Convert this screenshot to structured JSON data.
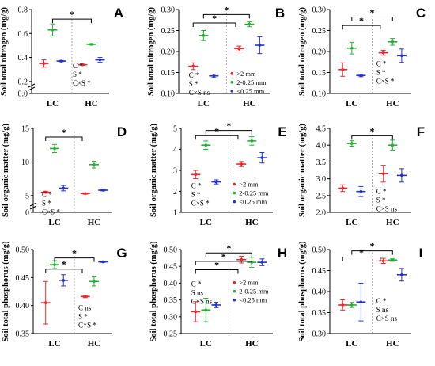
{
  "figure": {
    "legend_entries": [
      ">2 mm",
      "2-0.25 mm",
      "<0.25 mm"
    ],
    "colors": {
      "gt2": "#e8262b",
      "mid": "#23b033",
      "lt025": "#2431c8",
      "axis": "#000000",
      "divider": "#9a9a9a"
    }
  },
  "chart_data": [
    {
      "panel": "A",
      "type": "scatter",
      "ylabel": "Soil total nitrogen (mg/g)",
      "ylim": [
        0.1,
        0.8
      ],
      "yticks": [
        "0.0",
        "0.2",
        "0.4",
        "0.6",
        "0.8"
      ],
      "yticks_values": [
        0.0,
        0.2,
        0.4,
        0.6,
        0.8
      ],
      "broken_axis": true,
      "groups": [
        "LC",
        "HC"
      ],
      "series": [
        {
          "color": "gt2",
          "points": [
            {
              "group": "LC",
              "mean": 0.35,
              "sd": 0.03
            },
            {
              "group": "HC",
              "mean": 0.34,
              "sd": 0.005
            }
          ]
        },
        {
          "color": "mid",
          "points": [
            {
              "group": "LC",
              "mean": 0.63,
              "sd": 0.05
            },
            {
              "group": "HC",
              "mean": 0.51,
              "sd": 0.005
            }
          ]
        },
        {
          "color": "lt025",
          "points": [
            {
              "group": "LC",
              "mean": 0.37,
              "sd": 0.005
            },
            {
              "group": "HC",
              "mean": 0.38,
              "sd": 0.02
            }
          ]
        }
      ],
      "brackets": [
        {
          "x1": 0.0,
          "x2": 1.0,
          "y": 0.72,
          "label": "*"
        }
      ],
      "annotation_lines": [
        "C *",
        "S *",
        "C×S *"
      ],
      "annotation_pos": [
        0.52,
        0.31
      ],
      "legend": false
    },
    {
      "panel": "B",
      "type": "scatter",
      "ylabel": "Soil total nitrogen (mg/g)",
      "ylim": [
        0.1,
        0.3
      ],
      "yticks": [
        "0.10",
        "0.15",
        "0.20",
        "0.25",
        "0.30"
      ],
      "yticks_values": [
        0.1,
        0.15,
        0.2,
        0.25,
        0.3
      ],
      "broken_axis": false,
      "groups": [
        "LC",
        "HC"
      ],
      "series": [
        {
          "color": "gt2",
          "points": [
            {
              "group": "LC",
              "mean": 0.165,
              "sd": 0.008
            },
            {
              "group": "HC",
              "mean": 0.207,
              "sd": 0.006
            }
          ]
        },
        {
          "color": "mid",
          "points": [
            {
              "group": "LC",
              "mean": 0.238,
              "sd": 0.012
            },
            {
              "group": "HC",
              "mean": 0.265,
              "sd": 0.006
            }
          ]
        },
        {
          "color": "lt025",
          "points": [
            {
              "group": "LC",
              "mean": 0.142,
              "sd": 0.004
            },
            {
              "group": "HC",
              "mean": 0.215,
              "sd": 0.02
            }
          ]
        }
      ],
      "brackets": [
        {
          "x1": -0.3,
          "x2": 0.7,
          "y": 0.268,
          "label": "*"
        },
        {
          "x1": 0.0,
          "x2": 1.0,
          "y": 0.288,
          "label": "*"
        }
      ],
      "annotation_lines": [
        "C *",
        "S *",
        "C×S ns"
      ],
      "annotation_pos": [
        -0.32,
        0.138
      ],
      "legend": true
    },
    {
      "panel": "C",
      "type": "scatter",
      "ylabel": "Soil total nitrogen (mg/g)",
      "ylim": [
        0.1,
        0.3
      ],
      "yticks": [
        "0.10",
        "0.15",
        "0.20",
        "0.25",
        "0.30"
      ],
      "yticks_values": [
        0.1,
        0.15,
        0.2,
        0.25,
        0.3
      ],
      "broken_axis": false,
      "groups": [
        "LC",
        "HC"
      ],
      "series": [
        {
          "color": "gt2",
          "points": [
            {
              "group": "LC",
              "mean": 0.157,
              "sd": 0.016
            },
            {
              "group": "HC",
              "mean": 0.197,
              "sd": 0.006
            }
          ]
        },
        {
          "color": "mid",
          "points": [
            {
              "group": "LC",
              "mean": 0.208,
              "sd": 0.014
            },
            {
              "group": "HC",
              "mean": 0.223,
              "sd": 0.008
            }
          ]
        },
        {
          "color": "lt025",
          "points": [
            {
              "group": "LC",
              "mean": 0.143,
              "sd": 0.003
            },
            {
              "group": "HC",
              "mean": 0.19,
              "sd": 0.016
            }
          ]
        }
      ],
      "brackets": [
        {
          "x1": -0.3,
          "x2": 0.7,
          "y": 0.262,
          "label": "*"
        },
        {
          "x1": 0.0,
          "x2": 1.0,
          "y": 0.282,
          "label": "*"
        }
      ],
      "annotation_lines": [
        "C *",
        "S *",
        "C×S *"
      ],
      "annotation_pos": [
        0.6,
        0.165
      ],
      "legend": false
    },
    {
      "panel": "D",
      "type": "scatter",
      "ylabel": "Soil organic matter (mg/g)",
      "ylim": [
        2.5,
        15
      ],
      "yticks": [
        "0",
        "5",
        "10",
        "15"
      ],
      "yticks_values": [
        0,
        5,
        10,
        15
      ],
      "broken_axis": true,
      "groups": [
        "LC",
        "HC"
      ],
      "series": [
        {
          "color": "gt2",
          "points": [
            {
              "group": "LC",
              "mean": 5.5,
              "sd": 0.15
            },
            {
              "group": "HC",
              "mean": 5.3,
              "sd": 0.1
            }
          ]
        },
        {
          "color": "mid",
          "points": [
            {
              "group": "LC",
              "mean": 12.0,
              "sd": 0.6
            },
            {
              "group": "HC",
              "mean": 9.6,
              "sd": 0.5
            }
          ]
        },
        {
          "color": "lt025",
          "points": [
            {
              "group": "LC",
              "mean": 6.1,
              "sd": 0.4
            },
            {
              "group": "HC",
              "mean": 5.8,
              "sd": 0.1
            }
          ]
        }
      ],
      "brackets": [
        {
          "x1": -0.3,
          "x2": 0.7,
          "y": 13.7,
          "label": "*"
        }
      ],
      "annotation_lines": [
        "C *",
        "S *",
        "C×S *"
      ],
      "annotation_pos": [
        -0.32,
        4.8
      ],
      "legend": false
    },
    {
      "panel": "E",
      "type": "scatter",
      "ylabel": "Soil organic matter (mg/g)",
      "ylim": [
        1,
        5
      ],
      "yticks": [
        "1",
        "2",
        "3",
        "4",
        "5"
      ],
      "yticks_values": [
        1,
        2,
        3,
        4,
        5
      ],
      "broken_axis": false,
      "groups": [
        "LC",
        "HC"
      ],
      "series": [
        {
          "color": "gt2",
          "points": [
            {
              "group": "LC",
              "mean": 2.8,
              "sd": 0.2
            },
            {
              "group": "HC",
              "mean": 3.3,
              "sd": 0.12
            }
          ]
        },
        {
          "color": "mid",
          "points": [
            {
              "group": "LC",
              "mean": 4.2,
              "sd": 0.2
            },
            {
              "group": "HC",
              "mean": 4.4,
              "sd": 0.2
            }
          ]
        },
        {
          "color": "lt025",
          "points": [
            {
              "group": "LC",
              "mean": 2.45,
              "sd": 0.1
            },
            {
              "group": "HC",
              "mean": 3.6,
              "sd": 0.25
            }
          ]
        }
      ],
      "brackets": [
        {
          "x1": -0.3,
          "x2": 0.7,
          "y": 4.65,
          "label": "*"
        },
        {
          "x1": 0.0,
          "x2": 1.0,
          "y": 4.9,
          "label": "*"
        }
      ],
      "annotation_lines": [
        "C *",
        "S *",
        "C×S *"
      ],
      "annotation_pos": [
        -0.32,
        2.15
      ],
      "legend": true
    },
    {
      "panel": "F",
      "type": "scatter",
      "ylabel": "Soil organic matter (mg/g)",
      "ylim": [
        2,
        4.5
      ],
      "yticks": [
        "2.0",
        "2.5",
        "3.0",
        "3.5",
        "4.0",
        "4.5"
      ],
      "yticks_values": [
        2.0,
        2.5,
        3.0,
        3.5,
        4.0,
        4.5
      ],
      "broken_axis": false,
      "groups": [
        "LC",
        "HC"
      ],
      "series": [
        {
          "color": "gt2",
          "points": [
            {
              "group": "LC",
              "mean": 2.72,
              "sd": 0.1
            },
            {
              "group": "HC",
              "mean": 3.15,
              "sd": 0.25
            }
          ]
        },
        {
          "color": "mid",
          "points": [
            {
              "group": "LC",
              "mean": 4.05,
              "sd": 0.08
            },
            {
              "group": "HC",
              "mean": 4.0,
              "sd": 0.15
            }
          ]
        },
        {
          "color": "lt025",
          "points": [
            {
              "group": "LC",
              "mean": 2.62,
              "sd": 0.15
            },
            {
              "group": "HC",
              "mean": 3.1,
              "sd": 0.2
            }
          ]
        }
      ],
      "brackets": [
        {
          "x1": 0.0,
          "x2": 1.0,
          "y": 4.28,
          "label": "*"
        }
      ],
      "annotation_lines": [
        "C *",
        "S *",
        "C×S ns"
      ],
      "annotation_pos": [
        0.6,
        2.55
      ],
      "legend": false
    },
    {
      "panel": "G",
      "type": "scatter",
      "ylabel": "Soil total phosphorus (mg/g)",
      "ylim": [
        0.35,
        0.5
      ],
      "yticks": [
        "0.35",
        "0.40",
        "0.45",
        "0.50"
      ],
      "yticks_values": [
        0.35,
        0.4,
        0.45,
        0.5
      ],
      "broken_axis": false,
      "groups": [
        "LC",
        "HC"
      ],
      "series": [
        {
          "color": "gt2",
          "points": [
            {
              "group": "LC",
              "mean": 0.405,
              "sd": 0.038
            },
            {
              "group": "HC",
              "mean": 0.416,
              "sd": 0.002
            }
          ]
        },
        {
          "color": "mid",
          "points": [
            {
              "group": "LC",
              "mean": 0.473,
              "sd": 0.007
            },
            {
              "group": "HC",
              "mean": 0.443,
              "sd": 0.008
            }
          ]
        },
        {
          "color": "lt025",
          "points": [
            {
              "group": "LC",
              "mean": 0.445,
              "sd": 0.01
            },
            {
              "group": "HC",
              "mean": 0.478,
              "sd": 0.001
            }
          ]
        }
      ],
      "brackets": [
        {
          "x1": -0.3,
          "x2": 0.7,
          "y": 0.465,
          "label": "*"
        },
        {
          "x1": 0.0,
          "x2": 1.0,
          "y": 0.485,
          "label": "*"
        }
      ],
      "annotation_lines": [
        "C ns",
        "S *",
        "C×S *"
      ],
      "annotation_pos": [
        0.6,
        0.392
      ],
      "legend": false
    },
    {
      "panel": "H",
      "type": "scatter",
      "ylabel": "Soil total phosphorus (mg/g)",
      "ylim": [
        0.25,
        0.5
      ],
      "yticks": [
        "0.25",
        "0.30",
        "0.35",
        "0.40",
        "0.45",
        "0.50"
      ],
      "yticks_values": [
        0.25,
        0.3,
        0.35,
        0.4,
        0.45,
        0.5
      ],
      "broken_axis": false,
      "groups": [
        "LC",
        "HC"
      ],
      "series": [
        {
          "color": "gt2",
          "points": [
            {
              "group": "LC",
              "mean": 0.315,
              "sd": 0.03
            },
            {
              "group": "HC",
              "mean": 0.47,
              "sd": 0.01
            }
          ]
        },
        {
          "color": "mid",
          "points": [
            {
              "group": "LC",
              "mean": 0.32,
              "sd": 0.035
            },
            {
              "group": "HC",
              "mean": 0.462,
              "sd": 0.015
            }
          ]
        },
        {
          "color": "lt025",
          "points": [
            {
              "group": "LC",
              "mean": 0.335,
              "sd": 0.008
            },
            {
              "group": "HC",
              "mean": 0.462,
              "sd": 0.01
            }
          ]
        }
      ],
      "brackets": [
        {
          "x1": -0.3,
          "x2": 0.7,
          "y": 0.44,
          "label": "*"
        },
        {
          "x1": -0.3,
          "x2": 1.0,
          "y": 0.465,
          "label": "*"
        },
        {
          "x1": 0.0,
          "x2": 1.0,
          "y": 0.49,
          "label": "*"
        }
      ],
      "annotation_lines": [
        "C *",
        "S ns",
        "C×S ns"
      ],
      "annotation_pos": [
        -0.32,
        0.39
      ],
      "legend": true
    },
    {
      "panel": "I",
      "type": "scatter",
      "ylabel": "Soil total phosphorus (mg/g)",
      "ylim": [
        0.3,
        0.5
      ],
      "yticks": [
        "0.30",
        "0.35",
        "0.40",
        "0.45",
        "0.50"
      ],
      "yticks_values": [
        0.3,
        0.35,
        0.4,
        0.45,
        0.5
      ],
      "broken_axis": false,
      "groups": [
        "LC",
        "HC"
      ],
      "series": [
        {
          "color": "gt2",
          "points": [
            {
              "group": "LC",
              "mean": 0.368,
              "sd": 0.012
            },
            {
              "group": "HC",
              "mean": 0.473,
              "sd": 0.006
            }
          ]
        },
        {
          "color": "mid",
          "points": [
            {
              "group": "LC",
              "mean": 0.368,
              "sd": 0.006
            },
            {
              "group": "HC",
              "mean": 0.475,
              "sd": 0.003
            }
          ]
        },
        {
          "color": "lt025",
          "points": [
            {
              "group": "LC",
              "mean": 0.375,
              "sd": 0.045
            },
            {
              "group": "HC",
              "mean": 0.44,
              "sd": 0.015
            }
          ]
        }
      ],
      "brackets": [
        {
          "x1": -0.3,
          "x2": 0.7,
          "y": 0.482,
          "label": "*"
        },
        {
          "x1": 0.0,
          "x2": 1.0,
          "y": 0.497,
          "label": "*"
        }
      ],
      "annotation_lines": [
        "C *",
        "S ns",
        "C×S ns"
      ],
      "annotation_pos": [
        0.6,
        0.372
      ],
      "legend": false
    }
  ]
}
